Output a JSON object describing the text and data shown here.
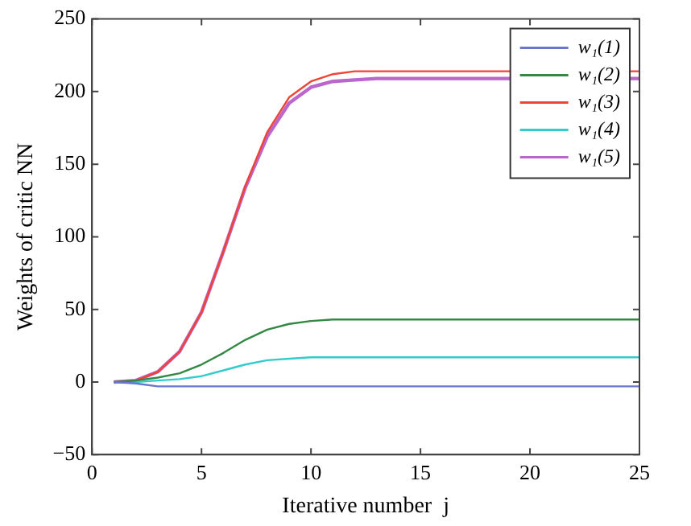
{
  "chart_data": {
    "type": "line",
    "xlabel": "Iterative number  j",
    "ylabel": "Weights of critic NN",
    "x": [
      1,
      2,
      3,
      4,
      5,
      6,
      7,
      8,
      9,
      10,
      11,
      12,
      13,
      14,
      15,
      16,
      17,
      18,
      19,
      20,
      21,
      22,
      23,
      24,
      25
    ],
    "series": [
      {
        "name": "w₁(1)",
        "color": "#6677cc",
        "values": [
          0,
          -1,
          -3,
          -3,
          -3,
          -3,
          -3,
          -3,
          -3,
          -3,
          -3,
          -3,
          -3,
          -3,
          -3,
          -3,
          -3,
          -3,
          -3,
          -3,
          -3,
          -3,
          -3,
          -3,
          -3
        ]
      },
      {
        "name": "w₁(2)",
        "color": "#338844",
        "values": [
          0,
          1,
          3,
          6,
          12,
          20,
          29,
          36,
          40,
          42,
          43,
          43,
          43,
          43,
          43,
          43,
          43,
          43,
          43,
          43,
          43,
          43,
          43,
          43,
          43
        ]
      },
      {
        "name": "w₁(3)",
        "color": "#ee4433",
        "values": [
          0,
          1,
          7,
          21,
          48,
          90,
          135,
          172,
          196,
          207,
          212,
          214,
          214,
          214,
          214,
          214,
          214,
          214,
          214,
          null,
          null,
          null,
          null,
          null,
          214
        ]
      },
      {
        "name": "w₁(4)",
        "color": "#33cccc",
        "values": [
          0,
          0,
          1,
          2,
          4,
          8,
          12,
          15,
          16,
          17,
          17,
          17,
          17,
          17,
          17,
          17,
          17,
          17,
          17,
          17,
          17,
          17,
          17,
          17,
          17
        ]
      },
      {
        "name": "w₁(5)",
        "color": "#bb66cc",
        "values": [
          0,
          1,
          7,
          21,
          48,
          90,
          134,
          169,
          192,
          203,
          207,
          208,
          209,
          209,
          209,
          209,
          209,
          209,
          209,
          null,
          null,
          null,
          null,
          null,
          209
        ]
      }
    ],
    "xlim": [
      0,
      25
    ],
    "xticks": [
      0,
      5,
      10,
      15,
      20,
      25
    ],
    "ylim": [
      -50,
      250
    ],
    "yticks": [
      -50,
      0,
      50,
      100,
      150,
      200,
      250
    ],
    "grid": false,
    "legend": "top right",
    "marker": "none",
    "line_style": "solid"
  }
}
